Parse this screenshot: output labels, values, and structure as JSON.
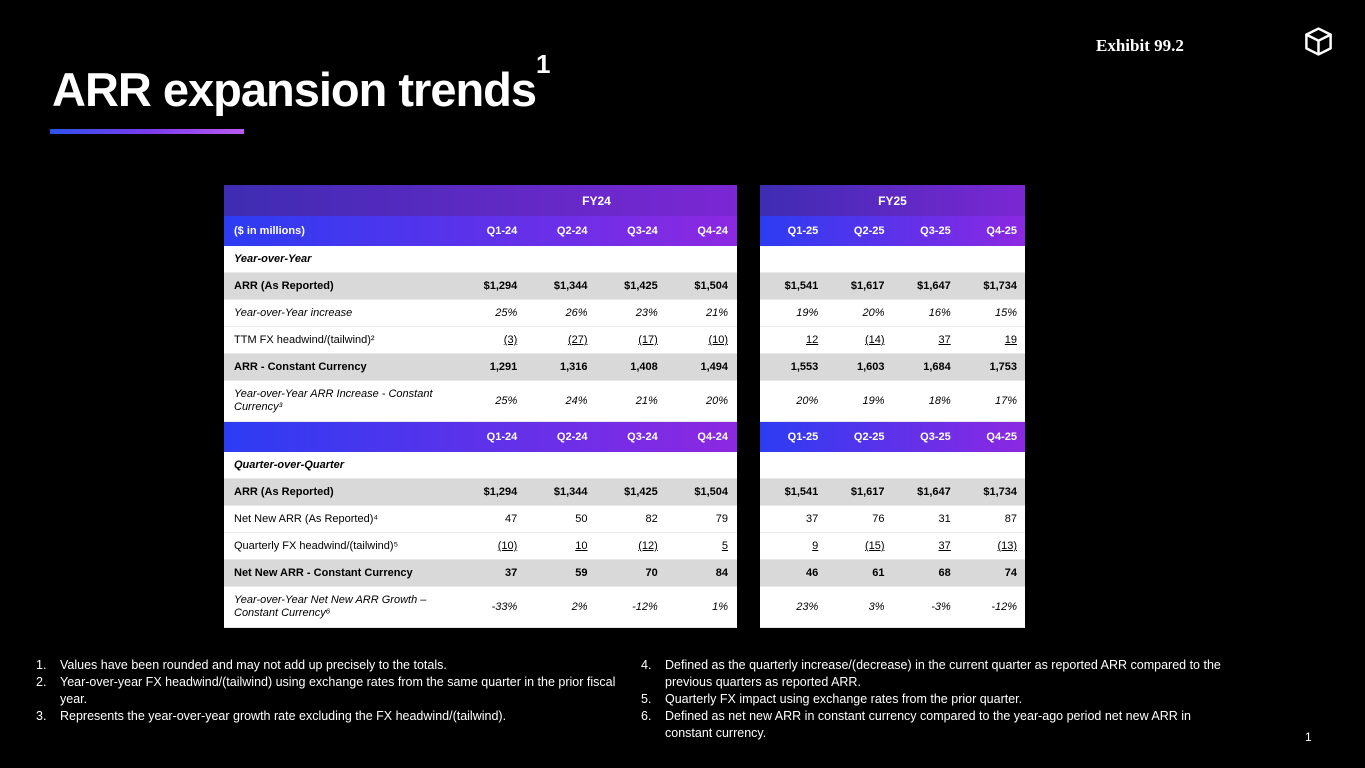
{
  "page": {
    "exhibit_label": "Exhibit 99.2",
    "title": "ARR expansion trends",
    "title_superscript": "1",
    "page_number": "1"
  },
  "colors": {
    "background": "#000000",
    "fy_header_gradient": [
      "#3e2cb2",
      "#7b27d3"
    ],
    "quarter_header_gradient": [
      "#2c3cf3",
      "#8d28e1"
    ],
    "emphasis_row_bg": "#d9d9d9",
    "title_underline_gradient": [
      "#2c53ee",
      "#7a3bee",
      "#b95af0"
    ]
  },
  "table": {
    "fy24_label": "FY24",
    "fy25_label": "FY25",
    "quarters_fy24": [
      "Q1-24",
      "Q2-24",
      "Q3-24",
      "Q4-24"
    ],
    "quarters_fy25": [
      "Q1-25",
      "Q2-25",
      "Q3-25",
      "Q4-25"
    ],
    "rows": [
      {
        "type": "qheader",
        "label": "($ in millions)"
      },
      {
        "type": "section",
        "label": "Year-over-Year"
      },
      {
        "type": "data",
        "style": "emphasis",
        "label": "ARR (As Reported)",
        "fy24": [
          "$1,294",
          "$1,344",
          "$1,425",
          "$1,504"
        ],
        "fy25": [
          "$1,541",
          "$1,617",
          "$1,647",
          "$1,734"
        ]
      },
      {
        "type": "data",
        "style": "italic",
        "label": "Year-over-Year increase",
        "fy24": [
          "25%",
          "26%",
          "23%",
          "21%"
        ],
        "fy25": [
          "19%",
          "20%",
          "16%",
          "15%"
        ]
      },
      {
        "type": "data",
        "style": "underline",
        "label": "TTM FX headwind/(tailwind)²",
        "fy24": [
          "(3)",
          "(27)",
          "(17)",
          "(10)"
        ],
        "fy25": [
          "12",
          "(14)",
          "37",
          "19"
        ]
      },
      {
        "type": "data",
        "style": "emphasis",
        "label": "ARR - Constant Currency",
        "fy24": [
          "1,291",
          "1,316",
          "1,408",
          "1,494"
        ],
        "fy25": [
          "1,553",
          "1,603",
          "1,684",
          "1,753"
        ]
      },
      {
        "type": "data",
        "style": "italic tall",
        "label": "Year-over-Year ARR Increase - Constant Currency³",
        "fy24": [
          "25%",
          "24%",
          "21%",
          "20%"
        ],
        "fy25": [
          "20%",
          "19%",
          "18%",
          "17%"
        ]
      },
      {
        "type": "qheader",
        "label": ""
      },
      {
        "type": "section",
        "label": "Quarter-over-Quarter"
      },
      {
        "type": "data",
        "style": "emphasis",
        "label": "ARR (As Reported)",
        "fy24": [
          "$1,294",
          "$1,344",
          "$1,425",
          "$1,504"
        ],
        "fy25": [
          "$1,541",
          "$1,617",
          "$1,647",
          "$1,734"
        ]
      },
      {
        "type": "data",
        "style": "",
        "label": "Net New ARR (As Reported)⁴",
        "fy24": [
          "47",
          "50",
          "82",
          "79"
        ],
        "fy25": [
          "37",
          "76",
          "31",
          "87"
        ]
      },
      {
        "type": "data",
        "style": "underline",
        "label": "Quarterly FX headwind/(tailwind)⁵",
        "fy24": [
          "(10)",
          "10",
          "(12)",
          "5"
        ],
        "fy25": [
          "9",
          "(15)",
          "37",
          "(13)"
        ]
      },
      {
        "type": "data",
        "style": "emphasis",
        "label": "Net New ARR - Constant Currency",
        "fy24": [
          "37",
          "59",
          "70",
          "84"
        ],
        "fy25": [
          "46",
          "61",
          "68",
          "74"
        ]
      },
      {
        "type": "data",
        "style": "italic tall",
        "label": "Year-over-Year Net New ARR Growth – Constant Currency⁶",
        "fy24": [
          "-33%",
          "2%",
          "-12%",
          "1%"
        ],
        "fy25": [
          "23%",
          "3%",
          "-3%",
          "-12%"
        ]
      }
    ]
  },
  "footnotes": {
    "left": [
      {
        "num": "1.",
        "text": "Values have been rounded and may not add up precisely to the totals."
      },
      {
        "num": "2.",
        "text": "Year-over-year FX headwind/(tailwind) using exchange rates from the same quarter in the prior fiscal year."
      },
      {
        "num": "3.",
        "text": "Represents the year-over-year growth rate excluding the FX headwind/(tailwind)."
      }
    ],
    "right": [
      {
        "num": "4.",
        "text": "Defined as the quarterly increase/(decrease) in the current quarter as reported ARR compared to the previous quarters as reported ARR."
      },
      {
        "num": "5.",
        "text": "Quarterly FX impact using exchange rates from the prior quarter."
      },
      {
        "num": "6.",
        "text": "Defined as net new ARR in constant currency compared to the year-ago period net new ARR in constant currency."
      }
    ]
  }
}
